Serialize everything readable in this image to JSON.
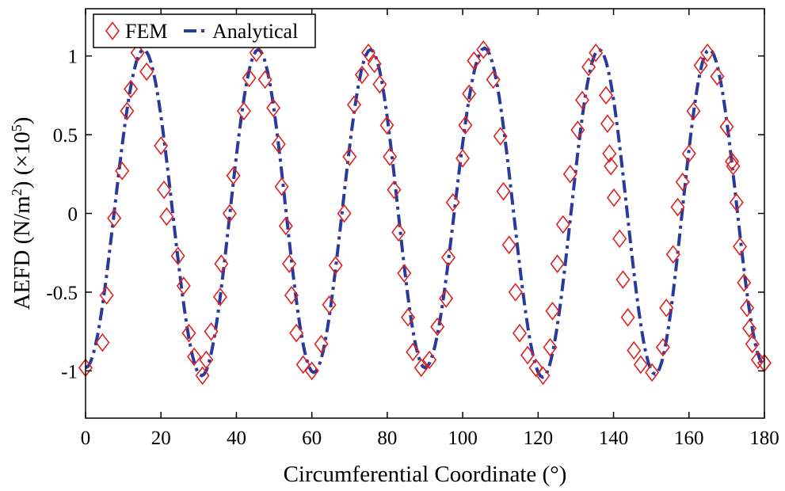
{
  "chart_data": {
    "type": "line",
    "title": "",
    "xlabel": "Circumferential Coordinate (°)",
    "ylabel": {
      "prefix": "AEFD (N/m",
      "sup1": "2",
      "middle": ") (×10",
      "sup2": "5",
      "suffix": ")"
    },
    "xlim": [
      0,
      180
    ],
    "ylim": [
      -1.3,
      1.3
    ],
    "x_ticks": [
      0,
      20,
      40,
      60,
      80,
      100,
      120,
      140,
      160,
      180
    ],
    "x_tick_labels": [
      "0",
      "20",
      "40",
      "60",
      "80",
      "100",
      "120",
      "140",
      "160",
      "180"
    ],
    "y_ticks": [
      1,
      0.5,
      0,
      -0.5,
      -1
    ],
    "y_tick_labels": [
      "1",
      "0.5",
      "0",
      "-0.5",
      "-1"
    ],
    "grid": false,
    "legend_position": "top-left",
    "series": [
      {
        "name": "FEM",
        "style": "diamond-markers",
        "color": "#dd2222",
        "points": [
          [
            0.0,
            -0.98
          ],
          [
            4.5,
            -0.82
          ],
          [
            5.6,
            -0.52
          ],
          [
            7.6,
            -0.03
          ],
          [
            9.7,
            0.27
          ],
          [
            11.0,
            0.65
          ],
          [
            12.0,
            0.79
          ],
          [
            13.8,
            1.02
          ],
          [
            16.2,
            0.9
          ],
          [
            20.0,
            0.43
          ],
          [
            20.8,
            0.15
          ],
          [
            21.5,
            -0.02
          ],
          [
            24.5,
            -0.27
          ],
          [
            26.0,
            -0.46
          ],
          [
            27.4,
            -0.76
          ],
          [
            28.8,
            -0.91
          ],
          [
            31.0,
            -1.03
          ],
          [
            32.0,
            -0.93
          ],
          [
            33.3,
            -0.75
          ],
          [
            35.7,
            -0.53
          ],
          [
            36.0,
            -0.32
          ],
          [
            38.2,
            0.0
          ],
          [
            39.2,
            0.24
          ],
          [
            42.0,
            0.65
          ],
          [
            43.4,
            0.86
          ],
          [
            45.3,
            1.02
          ],
          [
            47.6,
            0.85
          ],
          [
            49.8,
            0.67
          ],
          [
            51.2,
            0.44
          ],
          [
            52.0,
            0.17
          ],
          [
            53.1,
            -0.08
          ],
          [
            54.0,
            -0.32
          ],
          [
            54.6,
            -0.52
          ],
          [
            55.9,
            -0.76
          ],
          [
            57.7,
            -0.96
          ],
          [
            60.0,
            -1.0
          ],
          [
            62.5,
            -0.83
          ],
          [
            64.6,
            -0.58
          ],
          [
            66.3,
            -0.33
          ],
          [
            68.6,
            0.0
          ],
          [
            70.0,
            0.36
          ],
          [
            71.2,
            0.69
          ],
          [
            73.3,
            0.88
          ],
          [
            75.0,
            1.02
          ],
          [
            76.6,
            0.95
          ],
          [
            78.0,
            0.82
          ],
          [
            79.9,
            0.56
          ],
          [
            80.7,
            0.36
          ],
          [
            81.8,
            0.15
          ],
          [
            83.0,
            -0.12
          ],
          [
            84.5,
            -0.38
          ],
          [
            85.5,
            -0.66
          ],
          [
            86.8,
            -0.88
          ],
          [
            89.0,
            -0.98
          ],
          [
            91.2,
            -0.93
          ],
          [
            93.3,
            -0.72
          ],
          [
            95.6,
            -0.54
          ],
          [
            96.2,
            -0.28
          ],
          [
            97.4,
            0.07
          ],
          [
            100.0,
            0.35
          ],
          [
            100.7,
            0.56
          ],
          [
            101.7,
            0.76
          ],
          [
            103.0,
            0.97
          ],
          [
            105.5,
            1.04
          ],
          [
            108.1,
            0.85
          ],
          [
            110.0,
            0.49
          ],
          [
            110.8,
            0.14
          ],
          [
            112.3,
            -0.2
          ],
          [
            114.0,
            -0.5
          ],
          [
            115.1,
            -0.76
          ],
          [
            117.2,
            -0.9
          ],
          [
            119.4,
            -0.98
          ],
          [
            121.3,
            -1.03
          ],
          [
            123.2,
            -0.85
          ],
          [
            123.8,
            -0.62
          ],
          [
            125.1,
            -0.32
          ],
          [
            126.6,
            -0.07
          ],
          [
            128.5,
            0.25
          ],
          [
            130.5,
            0.53
          ],
          [
            131.7,
            0.72
          ],
          [
            133.4,
            0.93
          ],
          [
            135.3,
            1.02
          ],
          [
            138.0,
            0.75
          ],
          [
            138.4,
            0.57
          ],
          [
            138.9,
            0.38
          ],
          [
            139.3,
            0.3
          ],
          [
            140.1,
            0.1
          ],
          [
            141.6,
            -0.16
          ],
          [
            142.5,
            -0.42
          ],
          [
            143.8,
            -0.66
          ],
          [
            145.4,
            -0.87
          ],
          [
            147.2,
            -0.96
          ],
          [
            150.2,
            -1.01
          ],
          [
            153.1,
            -0.85
          ],
          [
            154.0,
            -0.6
          ],
          [
            155.8,
            -0.26
          ],
          [
            157.0,
            0.04
          ],
          [
            158.3,
            0.2
          ],
          [
            160.0,
            0.38
          ],
          [
            161.2,
            0.65
          ],
          [
            163.1,
            0.94
          ],
          [
            164.9,
            1.02
          ],
          [
            167.5,
            0.87
          ],
          [
            170.0,
            0.55
          ],
          [
            171.4,
            0.33
          ],
          [
            171.7,
            0.3
          ],
          [
            172.6,
            0.07
          ],
          [
            173.5,
            -0.21
          ],
          [
            174.6,
            -0.44
          ],
          [
            175.4,
            -0.6
          ],
          [
            176.0,
            -0.73
          ],
          [
            176.8,
            -0.83
          ],
          [
            178.3,
            -0.93
          ],
          [
            180.0,
            -0.95
          ]
        ]
      },
      {
        "name": "Analytical",
        "style": "dash-dot",
        "color": "#2a3a9b",
        "peaks": [
          [
            0.0,
            -0.98
          ],
          [
            15.4,
            1.04
          ],
          [
            30.8,
            -1.03
          ],
          [
            45.8,
            1.04
          ],
          [
            60.5,
            -1.01
          ],
          [
            75.6,
            1.04
          ],
          [
            90.0,
            -0.98
          ],
          [
            105.8,
            1.05
          ],
          [
            121.2,
            -1.04
          ],
          [
            136.2,
            1.04
          ],
          [
            151.0,
            -1.02
          ],
          [
            165.4,
            1.04
          ],
          [
            180.0,
            -0.96
          ]
        ]
      }
    ]
  }
}
